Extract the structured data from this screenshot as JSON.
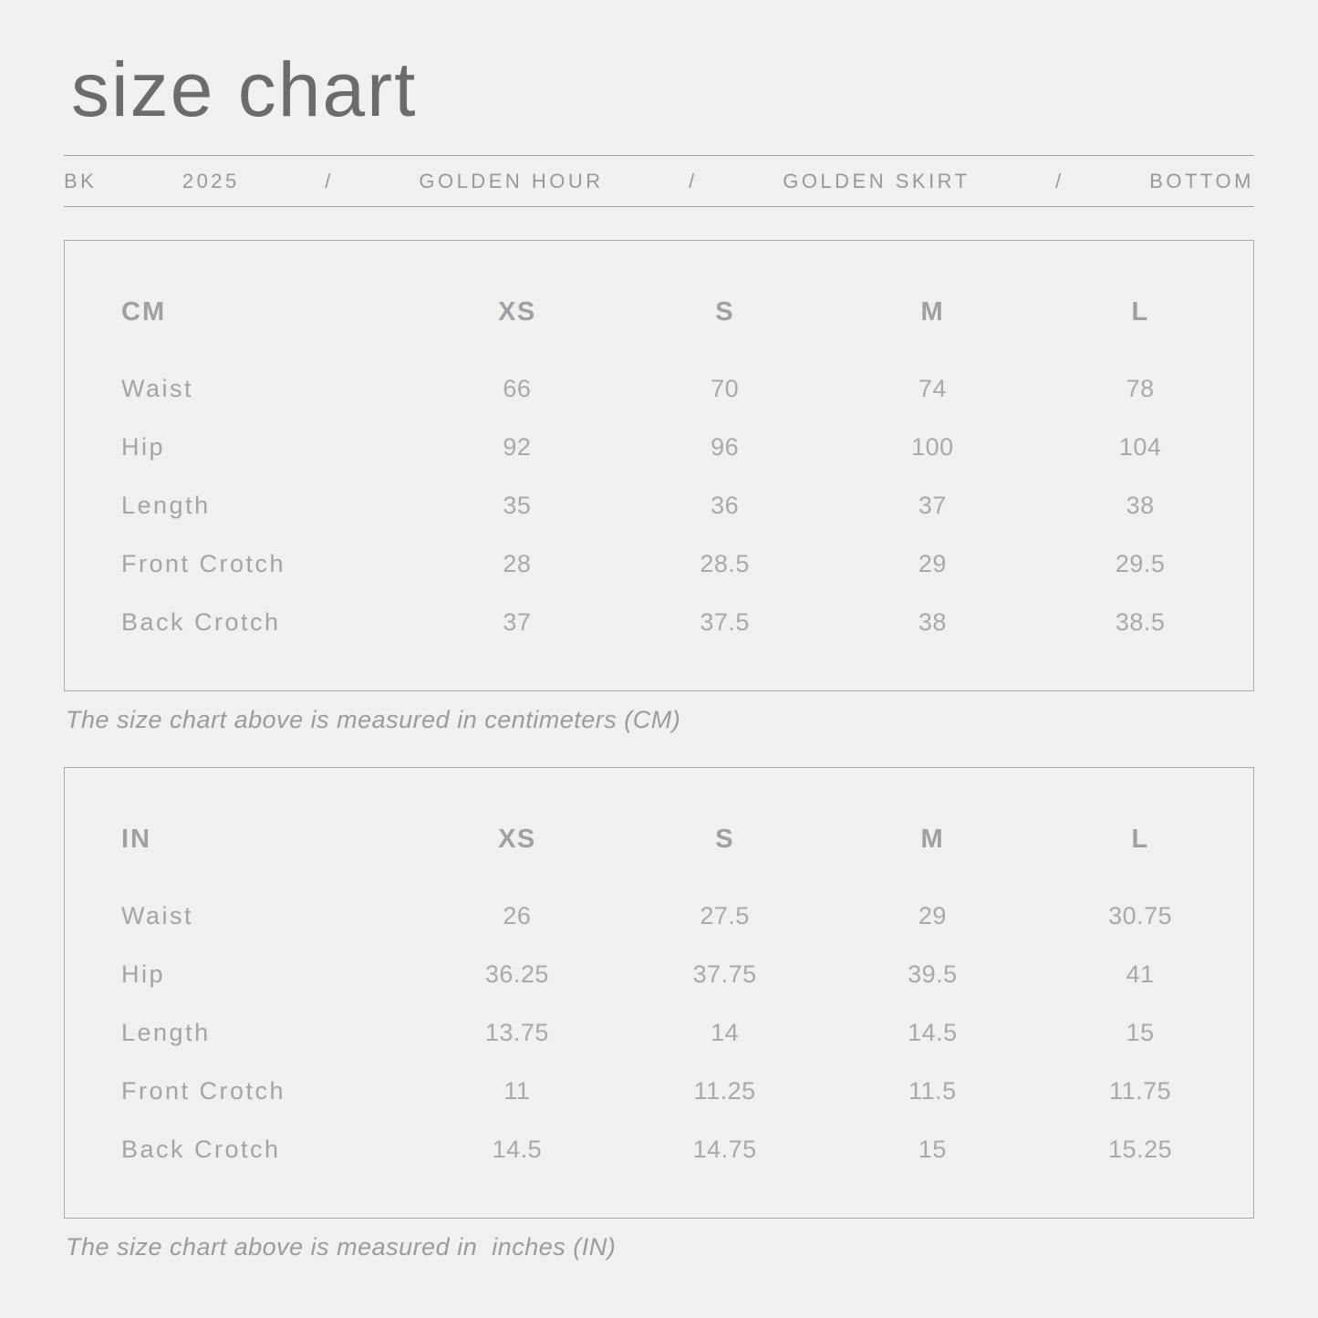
{
  "page": {
    "title": "size chart"
  },
  "breadcrumb": {
    "items": [
      "BK",
      "2025",
      "/",
      "GOLDEN HOUR",
      "/",
      "GOLDEN SKIRT",
      "/",
      "BOTTOM"
    ]
  },
  "tables": [
    {
      "unit_label": "CM",
      "columns": [
        "XS",
        "S",
        "M",
        "L"
      ],
      "rows": [
        {
          "label": "Waist",
          "values": [
            "66",
            "70",
            "74",
            "78"
          ]
        },
        {
          "label": "Hip",
          "values": [
            "92",
            "96",
            "100",
            "104"
          ]
        },
        {
          "label": "Length",
          "values": [
            "35",
            "36",
            "37",
            "38"
          ]
        },
        {
          "label": "Front Crotch",
          "values": [
            "28",
            "28.5",
            "29",
            "29.5"
          ]
        },
        {
          "label": "Back Crotch",
          "values": [
            "37",
            "37.5",
            "38",
            "38.5"
          ]
        }
      ],
      "caption": "The size chart above is measured in centimeters (CM)"
    },
    {
      "unit_label": "IN",
      "columns": [
        "XS",
        "S",
        "M",
        "L"
      ],
      "rows": [
        {
          "label": "Waist",
          "values": [
            "26",
            "27.5",
            "29",
            "30.75"
          ]
        },
        {
          "label": "Hip",
          "values": [
            "36.25",
            "37.75",
            "39.5",
            "41"
          ]
        },
        {
          "label": "Length",
          "values": [
            "13.75",
            "14",
            "14.5",
            "15"
          ]
        },
        {
          "label": "Front Crotch",
          "values": [
            "11",
            "11.25",
            "11.5",
            "11.75"
          ]
        },
        {
          "label": "Back Crotch",
          "values": [
            "14.5",
            "14.75",
            "15",
            "15.25"
          ]
        }
      ],
      "caption": "The size chart above is measured in  inches (IN)"
    }
  ],
  "colors": {
    "background": "#f0f0ee",
    "title_text": "#6c6c6c",
    "muted_text": "#a3a4a8",
    "border": "#a7a8ac"
  }
}
